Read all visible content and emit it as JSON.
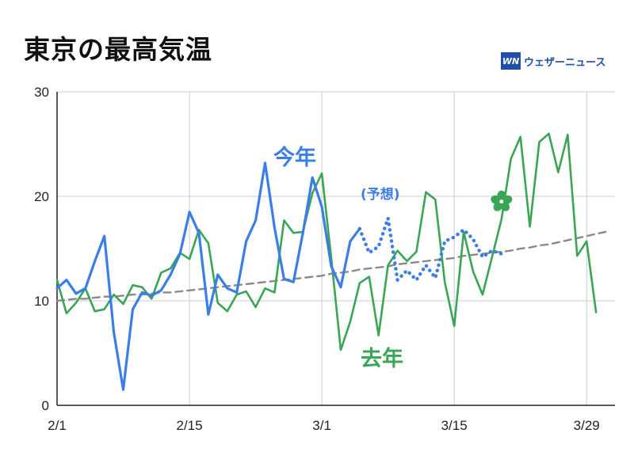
{
  "title": "東京の最高気温",
  "brand": {
    "mark": "WN",
    "name": "ウェザーニュース"
  },
  "colors": {
    "this_year": "#3a7ee6",
    "last_year": "#3aa655",
    "normal": "#8a8a8a",
    "grid": "#cccccc"
  },
  "chart_data": {
    "type": "line",
    "x_type": "date",
    "x_start": "2/1",
    "x_ticks": [
      "2/1",
      "2/15",
      "3/1",
      "3/15",
      "3/29"
    ],
    "x_tick_days": [
      0,
      14,
      28,
      42,
      56
    ],
    "xlim_days": [
      0,
      59
    ],
    "ylim": [
      0,
      30
    ],
    "y_ticks": [
      0,
      10,
      20,
      30
    ],
    "grid": true,
    "series": [
      {
        "name": "今年",
        "style": "solid",
        "color_key": "this_year",
        "values": [
          11.2,
          12.0,
          10.7,
          11.2,
          13.8,
          16.2,
          7.0,
          1.5,
          9.2,
          10.8,
          10.5,
          11.0,
          12.5,
          14.5,
          18.5,
          16.5,
          8.7,
          12.5,
          11.2,
          10.8,
          15.7,
          17.7,
          23.2,
          17.0,
          12.1,
          11.8,
          16.5,
          21.8,
          19.0,
          13.3,
          11.3,
          15.7,
          16.9
        ]
      },
      {
        "name": "(予想)",
        "style": "dotted",
        "color_key": "this_year",
        "x_start_day": 32,
        "values": [
          16.9,
          14.6,
          15.2,
          17.9,
          12.0,
          12.9,
          12.0,
          13.4,
          12.2,
          15.7,
          16.1,
          16.8,
          15.9,
          14.2,
          14.8,
          14.5
        ]
      },
      {
        "name": "去年",
        "style": "solid",
        "color_key": "last_year",
        "values": [
          12.0,
          8.8,
          9.8,
          11.2,
          9.0,
          9.2,
          10.6,
          9.7,
          11.5,
          11.3,
          10.2,
          12.7,
          13.1,
          14.6,
          14.0,
          16.8,
          15.5,
          9.8,
          9.0,
          10.6,
          10.9,
          9.4,
          11.2,
          10.8,
          17.7,
          16.5,
          16.6,
          20.3,
          22.2,
          14.1,
          5.3,
          8.0,
          11.7,
          12.3,
          6.7,
          13.4,
          14.8,
          13.8,
          14.7,
          20.4,
          19.7,
          11.8,
          7.6,
          16.6,
          12.8,
          10.6,
          14.2,
          17.8,
          23.6,
          25.7,
          17.1,
          25.2,
          26.0,
          22.3,
          25.9,
          14.3,
          15.7,
          8.9
        ]
      },
      {
        "name": "",
        "style": "dashed",
        "color_key": "normal",
        "values": [
          10.0,
          10.1,
          10.2,
          10.2,
          10.3,
          10.4,
          10.4,
          10.5,
          10.6,
          10.6,
          10.7,
          10.8,
          10.8,
          10.9,
          11.0,
          11.1,
          11.2,
          11.3,
          11.4,
          11.5,
          11.6,
          11.7,
          11.8,
          11.9,
          12.0,
          12.1,
          12.2,
          12.3,
          12.4,
          12.6,
          12.7,
          12.8,
          13.0,
          13.1,
          13.2,
          13.3,
          13.5,
          13.6,
          13.7,
          13.8,
          13.9,
          14.0,
          14.1,
          14.3,
          14.4,
          14.5,
          14.6,
          14.7,
          14.8,
          15.0,
          15.1,
          15.3,
          15.4,
          15.6,
          15.8,
          16.0,
          16.2,
          16.4,
          16.6
        ]
      }
    ],
    "annotations": [
      {
        "text": "今年",
        "color_key": "this_year"
      },
      {
        "text": "(予想)",
        "color_key": "this_year"
      },
      {
        "text": "去年",
        "color_key": "last_year"
      }
    ],
    "marker": {
      "icon": "sakura-icon",
      "day": 47,
      "value": 19.5
    }
  }
}
